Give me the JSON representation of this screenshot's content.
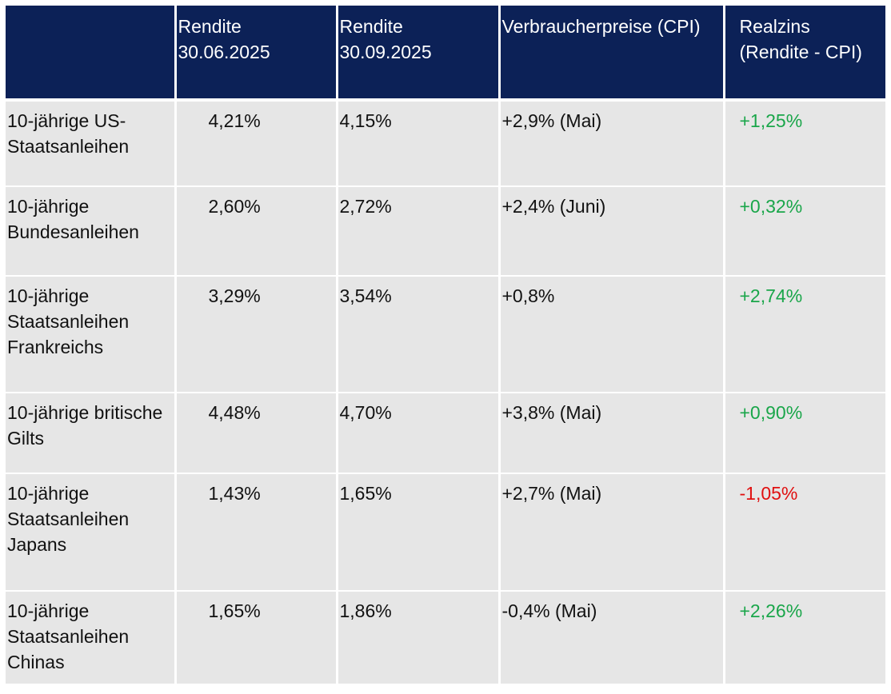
{
  "table": {
    "header": [
      "",
      "Rendite 30.06.2025",
      "Rendite 30.09.2025",
      "Verbraucherpreise (CPI)",
      "Realzins (Rendite - CPI)"
    ],
    "rows": [
      [
        "10-jährige US-Staatsanleihen",
        "4,21%",
        "4,15%",
        "+2,9% (Mai)",
        "+1,25%"
      ],
      [
        "10-jährige Bundesanleihen",
        "2,60%",
        "2,72%",
        "+2,4% (Juni)",
        "+0,32%"
      ],
      [
        "10-jährige Staatsanleihen Frankreichs",
        "3,29%",
        "3,54%",
        "+0,8%",
        "+2,74%"
      ],
      [
        "10-jährige britische Gilts",
        "4,48%",
        "4,70%",
        "+3,8% (Mai)",
        "+0,90%"
      ],
      [
        "10-jährige Staatsanleihen Japans",
        "1,43%",
        "1,65%",
        "+2,7% (Mai)",
        "-1,05%"
      ],
      [
        "10-jährige Staatsanleihen Chinas",
        "1,65%",
        "1,86%",
        "-0,4% (Mai)",
        "+2,26%"
      ]
    ]
  }
}
